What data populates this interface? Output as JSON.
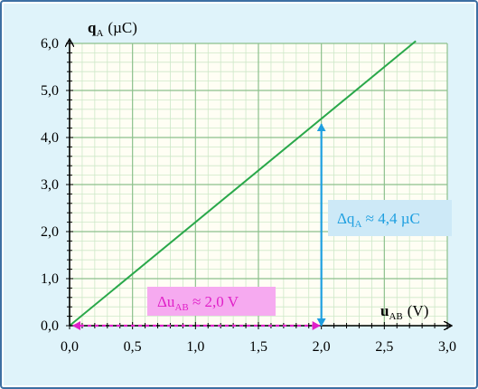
{
  "chart_data": {
    "type": "line",
    "xaxis": {
      "symbol": "u",
      "subscript": "AB",
      "unit": "(V)",
      "ticks": [
        "0,0",
        "0,5",
        "1,0",
        "1,5",
        "2,0",
        "2,5",
        "3,0"
      ],
      "range": [
        0,
        3.0
      ]
    },
    "yaxis": {
      "symbol": "q",
      "subscript": "A",
      "unit": "(µC)",
      "ticks": [
        "0,0",
        "1,0",
        "2,0",
        "3,0",
        "4,0",
        "5,0",
        "6,0"
      ],
      "range": [
        0,
        6.0
      ]
    },
    "series": [
      {
        "color": "#2aa84a",
        "x": [
          0.0,
          2.75
        ],
        "y": [
          0.0,
          6.05
        ]
      }
    ],
    "grid": true,
    "annotations": {
      "dq": {
        "prefix": "Δq",
        "subscript": "A",
        "suffix": " ≈ 4,4 µC",
        "x": 2.0,
        "y_from": 0.0,
        "y_to": 4.4,
        "color": "#1e9fe0",
        "box": "#cde9f7"
      },
      "du": {
        "prefix": "Δu",
        "subscript": "AB",
        "suffix": " ≈ 2,0 V",
        "y": 0.0,
        "x_from": 0.0,
        "x_to": 2.0,
        "color": "#e020c8",
        "box": "#f6aaf0"
      }
    }
  }
}
